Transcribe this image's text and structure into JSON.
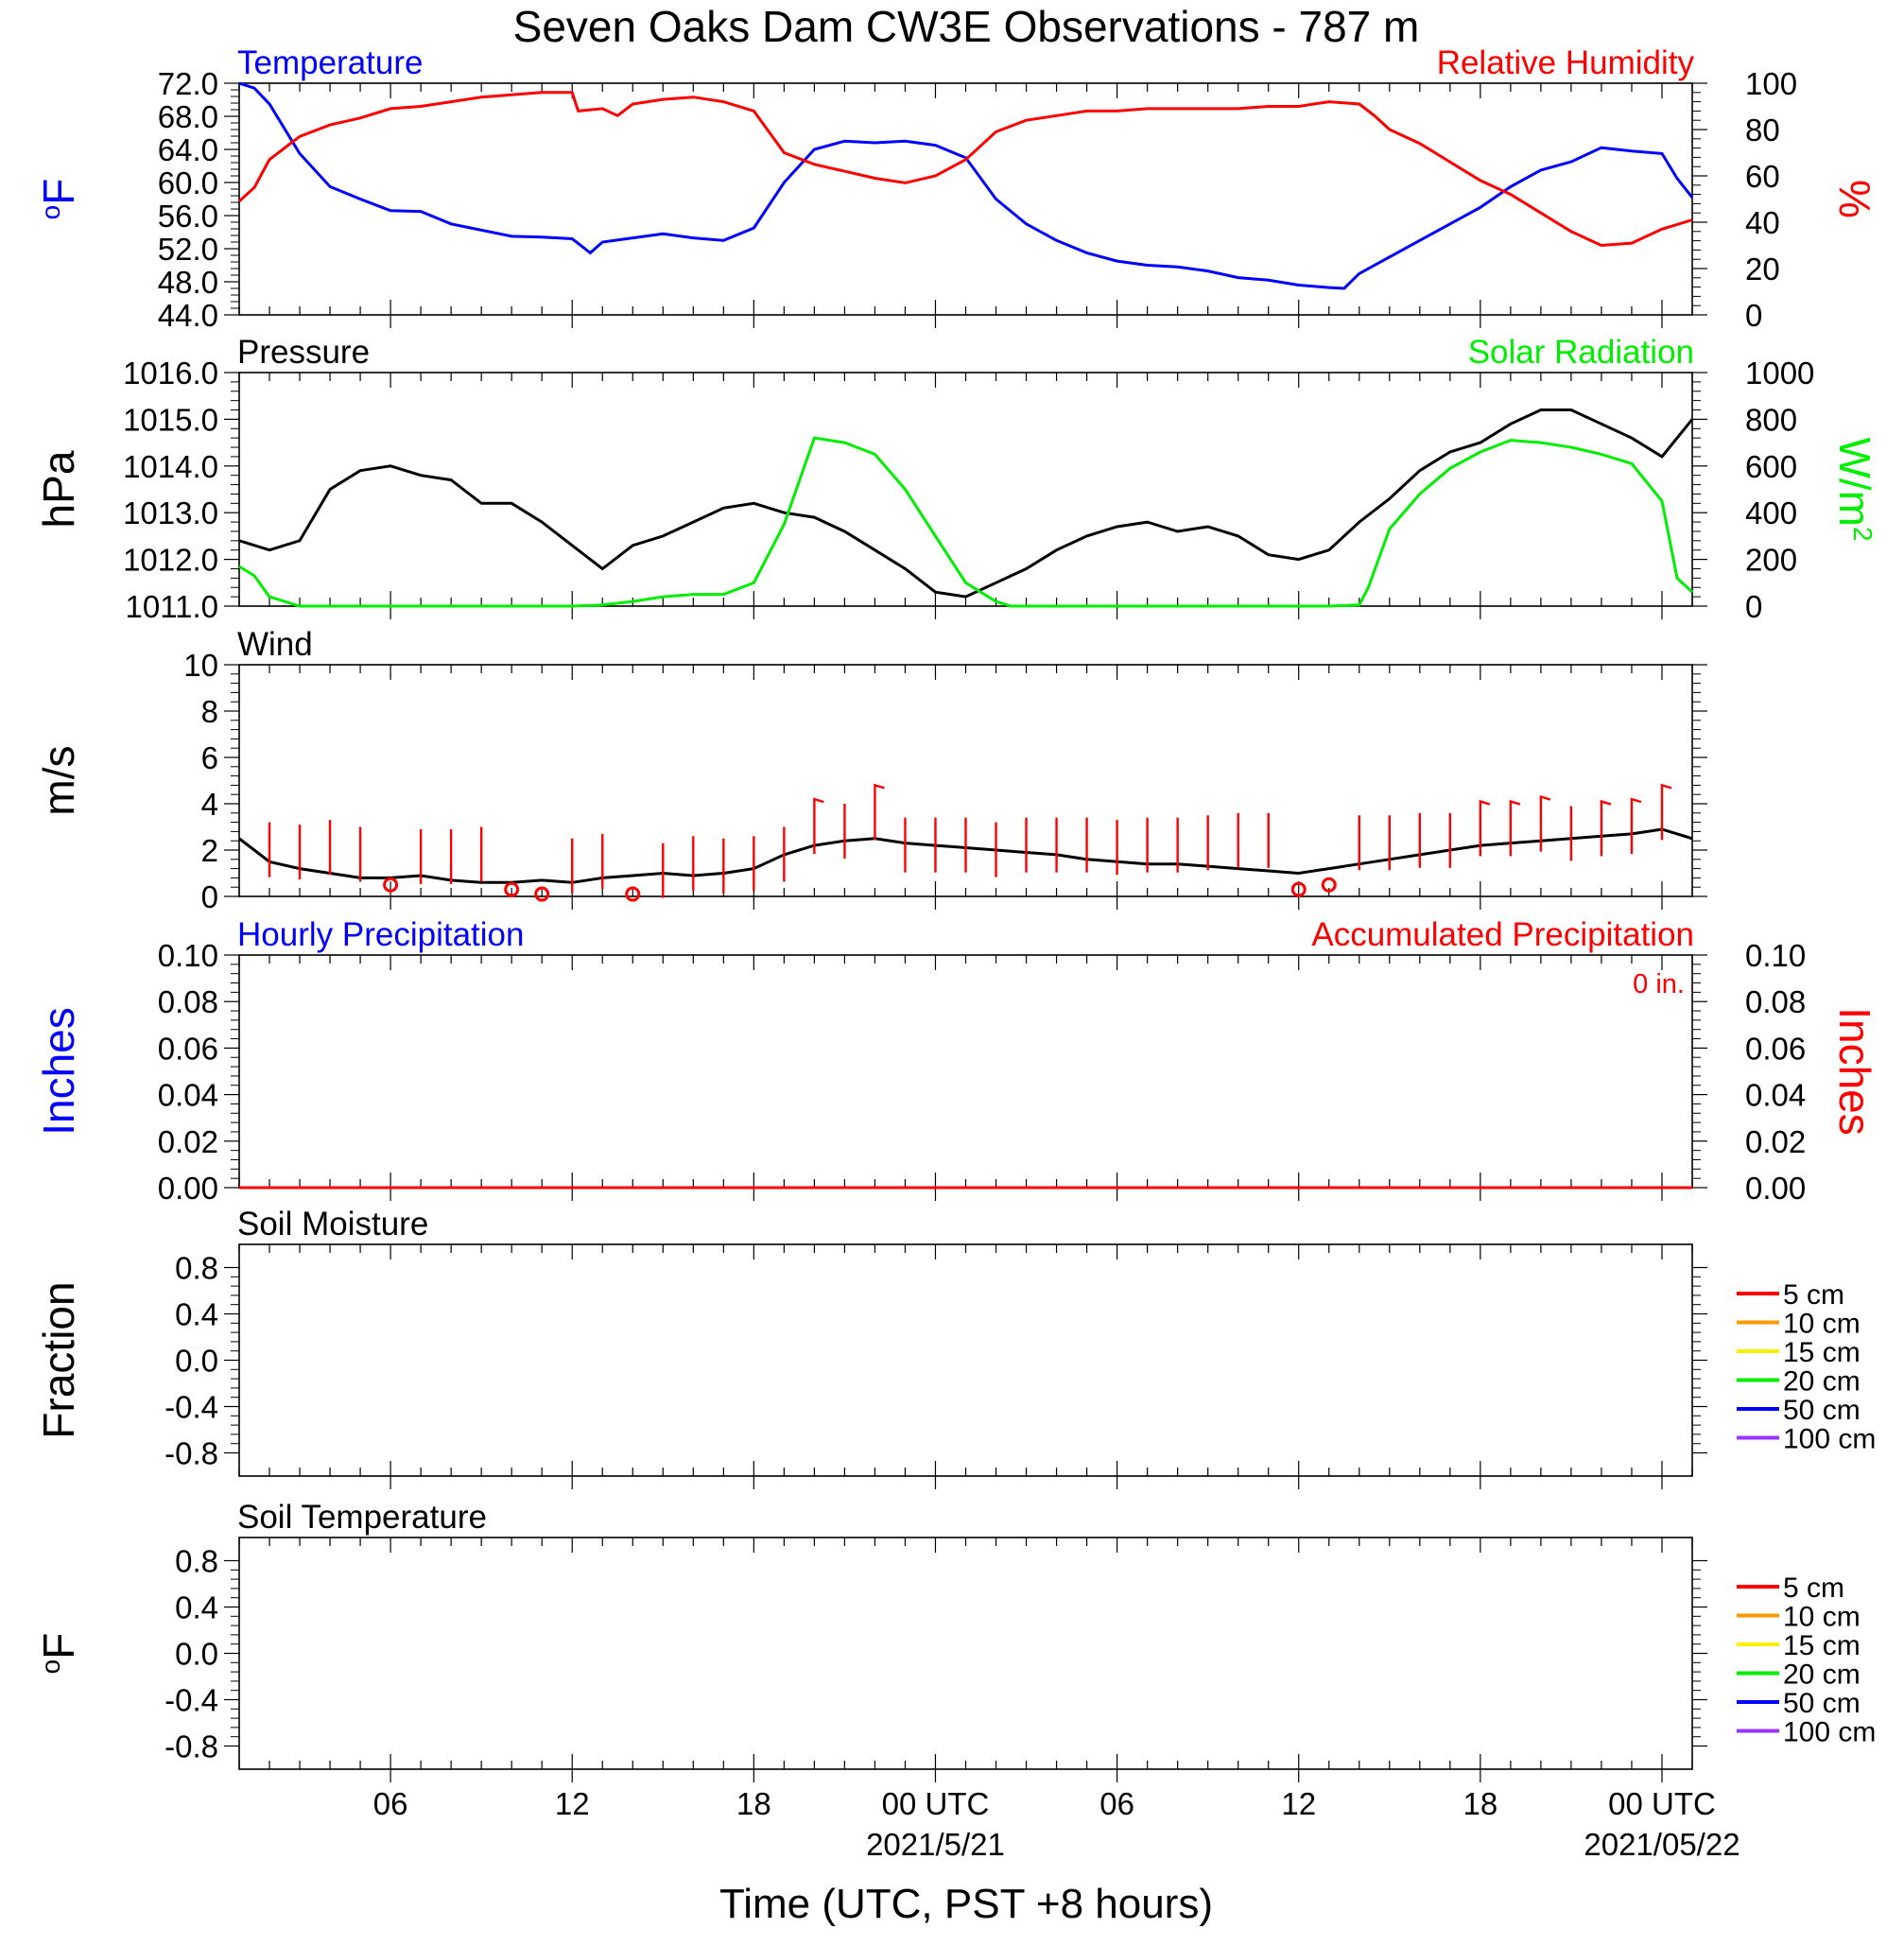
{
  "title": "Seven Oaks Dam CW3E Observations - 787 m",
  "xlabel": "Time (UTC, PST +8 hours)",
  "x_ticks": [
    {
      "hour": 6,
      "label": "06",
      "date": ""
    },
    {
      "hour": 12,
      "label": "12",
      "date": ""
    },
    {
      "hour": 18,
      "label": "18",
      "date": ""
    },
    {
      "hour": 24,
      "label": "00 UTC",
      "date": "2021/5/21"
    },
    {
      "hour": 30,
      "label": "06",
      "date": ""
    },
    {
      "hour": 36,
      "label": "12",
      "date": ""
    },
    {
      "hour": 42,
      "label": "18",
      "date": ""
    },
    {
      "hour": 48,
      "label": "00 UTC",
      "date": "2021/05/22"
    }
  ],
  "colors": {
    "temperature": "#0000ff",
    "humidity": "#ff0000",
    "pressure": "#000000",
    "solar": "#00ee00",
    "wind": "#000000",
    "barb": "#ff0000",
    "hourly_precip": "#0000ff",
    "accum_precip": "#ff0000"
  },
  "chart_data": [
    {
      "type": "line",
      "panel": "temperature-humidity",
      "title_left": "Temperature",
      "title_right": "Relative Humidity",
      "ylabel_left": "oF",
      "ylabel_right": "%",
      "xlim_hours": [
        1,
        49
      ],
      "ylim_left": [
        44,
        72
      ],
      "ylim_right": [
        0,
        100
      ],
      "yticks_left": [
        "72.0",
        "68.0",
        "64.0",
        "60.0",
        "56.0",
        "52.0",
        "48.0",
        "44.0"
      ],
      "yticks_right": [
        "100",
        "80",
        "60",
        "40",
        "20",
        "0"
      ],
      "series": [
        {
          "name": "Temperature",
          "axis": "left",
          "x": [
            1,
            1.5,
            2,
            3,
            4,
            5,
            6,
            7,
            8,
            10,
            11,
            12,
            12.6,
            13,
            14,
            15,
            16,
            17,
            18,
            19,
            20,
            21,
            22,
            23,
            24,
            25,
            26,
            27,
            28,
            29,
            30,
            31,
            32,
            33,
            34,
            35,
            36,
            37,
            37.5,
            38,
            39,
            40,
            41,
            42,
            43,
            44,
            45,
            46,
            47,
            48,
            48.5,
            49
          ],
          "y": [
            72,
            71.4,
            69.5,
            63.5,
            59.5,
            58,
            56.6,
            56.5,
            55,
            53.5,
            53.4,
            53.2,
            51.5,
            52.8,
            53.3,
            53.8,
            53.3,
            53,
            54.5,
            60,
            64,
            65,
            64.8,
            65,
            64.5,
            63,
            58,
            55,
            53,
            51.5,
            50.5,
            50,
            49.8,
            49.3,
            48.5,
            48.2,
            47.6,
            47.3,
            47.2,
            49,
            51,
            53,
            55,
            57,
            59.5,
            61.5,
            62.5,
            64.2,
            63.8,
            63.5,
            60.5,
            58.2
          ]
        },
        {
          "name": "Relative Humidity",
          "axis": "right",
          "x": [
            1,
            1.5,
            2,
            3,
            4,
            5,
            6,
            7,
            8,
            9,
            10,
            11,
            12,
            12.2,
            13,
            13.5,
            14,
            15,
            16,
            17,
            18,
            19,
            20,
            21,
            22,
            23,
            24,
            25,
            26,
            27,
            28,
            29,
            30,
            31,
            32,
            33,
            34,
            35,
            36,
            37,
            38,
            38.5,
            39,
            40,
            41,
            42,
            43,
            44,
            45,
            46,
            47,
            48,
            49
          ],
          "y": [
            49,
            55,
            67,
            77,
            82,
            85,
            89,
            90,
            92,
            94,
            95,
            96,
            96,
            88,
            89,
            86,
            91,
            93,
            94,
            92,
            88,
            70,
            65,
            62,
            59,
            57,
            60,
            67,
            79,
            84,
            86,
            88,
            88,
            89,
            89,
            89,
            89,
            90,
            90,
            92,
            91,
            86,
            80,
            74,
            66,
            58,
            52,
            44,
            36,
            30,
            31,
            37,
            41
          ]
        }
      ]
    },
    {
      "type": "line",
      "panel": "pressure-solar",
      "title_left": "Pressure",
      "title_right": "Solar Radiation",
      "ylabel_left": "hPa",
      "ylabel_right": "W/m2",
      "xlim_hours": [
        1,
        49
      ],
      "ylim_left": [
        1011,
        1016
      ],
      "ylim_right": [
        0,
        1000
      ],
      "yticks_left": [
        "1016.0",
        "1015.0",
        "1014.0",
        "1013.0",
        "1012.0",
        "1011.0"
      ],
      "yticks_right": [
        "1000",
        "800",
        "600",
        "400",
        "200",
        "0"
      ],
      "series": [
        {
          "name": "Pressure",
          "axis": "left",
          "x": [
            1,
            2,
            3,
            4,
            5,
            6,
            7,
            8,
            9,
            10,
            11,
            12,
            13,
            14,
            15,
            16,
            17,
            18,
            19,
            20,
            21,
            22,
            23,
            24,
            25,
            26,
            27,
            28,
            29,
            30,
            31,
            32,
            33,
            34,
            35,
            36,
            37,
            38,
            39,
            40,
            41,
            42,
            43,
            44,
            45,
            46,
            47,
            48,
            49
          ],
          "y": [
            1012.4,
            1012.2,
            1012.4,
            1013.5,
            1013.9,
            1014.0,
            1013.8,
            1013.7,
            1013.2,
            1013.2,
            1012.8,
            1012.3,
            1011.8,
            1012.3,
            1012.5,
            1012.8,
            1013.1,
            1013.2,
            1013.0,
            1012.9,
            1012.6,
            1012.2,
            1011.8,
            1011.3,
            1011.2,
            1011.5,
            1011.8,
            1012.2,
            1012.5,
            1012.7,
            1012.8,
            1012.6,
            1012.7,
            1012.5,
            1012.1,
            1012.0,
            1012.2,
            1012.8,
            1013.3,
            1013.9,
            1014.3,
            1014.5,
            1014.9,
            1015.2,
            1015.2,
            1014.9,
            1014.6,
            1014.2,
            1015.0
          ]
        },
        {
          "name": "Solar Radiation",
          "axis": "right",
          "x": [
            1,
            1.5,
            2,
            3,
            4,
            10,
            12,
            13,
            14,
            15,
            16,
            17,
            18,
            19,
            20,
            21,
            22,
            23,
            24,
            25,
            26,
            26.5,
            27,
            35,
            37,
            38,
            38.3,
            39,
            40,
            41,
            42,
            43,
            44,
            45,
            46,
            47,
            48,
            48.5,
            49
          ],
          "y": [
            170,
            130,
            40,
            0,
            0,
            0,
            0,
            5,
            20,
            40,
            50,
            50,
            100,
            350,
            720,
            700,
            650,
            500,
            300,
            100,
            20,
            0,
            0,
            0,
            0,
            5,
            80,
            330,
            480,
            590,
            660,
            710,
            700,
            680,
            650,
            610,
            450,
            120,
            60
          ]
        }
      ]
    },
    {
      "type": "line",
      "panel": "wind",
      "title_left": "Wind",
      "ylabel_left": "m/s",
      "xlim_hours": [
        1,
        49
      ],
      "ylim_left": [
        0,
        10
      ],
      "yticks_left": [
        "10",
        "8",
        "6",
        "4",
        "2",
        "0"
      ],
      "series": [
        {
          "name": "Wind",
          "axis": "left",
          "x": [
            1,
            1.5,
            2,
            3,
            4,
            5,
            6,
            7,
            8,
            9,
            10,
            11,
            12,
            13,
            14,
            15,
            16,
            17,
            18,
            19,
            20,
            21,
            22,
            23,
            24,
            25,
            26,
            27,
            28,
            29,
            30,
            31,
            32,
            33,
            34,
            35,
            36,
            37,
            38,
            39,
            40,
            41,
            42,
            43,
            44,
            45,
            46,
            47,
            48,
            49
          ],
          "y": [
            2.5,
            2.0,
            1.5,
            1.2,
            1.0,
            0.8,
            0.8,
            0.9,
            0.7,
            0.6,
            0.6,
            0.7,
            0.6,
            0.8,
            0.9,
            1.0,
            0.9,
            1.0,
            1.2,
            1.8,
            2.2,
            2.4,
            2.5,
            2.3,
            2.2,
            2.1,
            2.0,
            1.9,
            1.8,
            1.6,
            1.5,
            1.4,
            1.4,
            1.3,
            1.2,
            1.1,
            1.0,
            1.2,
            1.4,
            1.6,
            1.8,
            2.0,
            2.2,
            2.3,
            2.4,
            2.5,
            2.6,
            2.7,
            2.9,
            2.5
          ]
        },
        {
          "name": "Wind barbs",
          "axis": "left",
          "x": [
            2,
            3,
            4,
            5,
            6,
            7,
            8,
            9,
            10,
            11,
            12,
            13,
            14,
            15,
            16,
            17,
            18,
            19,
            20,
            21,
            22,
            23,
            24,
            25,
            26,
            27,
            28,
            29,
            30,
            31,
            32,
            33,
            34,
            35,
            36,
            37,
            38,
            39,
            40,
            41,
            42,
            43,
            44,
            45,
            46,
            47,
            48
          ],
          "y": [
            3.2,
            3.1,
            3.3,
            3.0,
            0.5,
            2.9,
            2.9,
            3.0,
            0.3,
            0.1,
            2.5,
            2.7,
            0.1,
            2.3,
            2.6,
            2.5,
            2.6,
            3.0,
            4.2,
            4.0,
            4.8,
            3.4,
            3.4,
            3.4,
            3.2,
            3.4,
            3.4,
            3.4,
            3.3,
            3.4,
            3.4,
            3.5,
            3.6,
            3.6,
            0.3,
            0.5,
            3.5,
            3.5,
            3.6,
            3.6,
            4.1,
            4.1,
            4.3,
            3.9,
            4.1,
            4.2,
            4.8
          ]
        }
      ]
    },
    {
      "type": "line",
      "panel": "precipitation",
      "title_left": "Hourly Precipitation",
      "title_right": "Accumulated Precipitation",
      "annotation": "0 in.",
      "ylabel_left": "Inches",
      "ylabel_right": "Inches",
      "xlim_hours": [
        1,
        49
      ],
      "ylim_left": [
        0,
        0.1
      ],
      "ylim_right": [
        0,
        0.1
      ],
      "yticks_left": [
        "0.10",
        "0.08",
        "0.06",
        "0.04",
        "0.02",
        "0.00"
      ],
      "yticks_right": [
        "0.10",
        "0.08",
        "0.06",
        "0.04",
        "0.02",
        "0.00"
      ],
      "series": [
        {
          "name": "Hourly Precipitation",
          "axis": "left",
          "x": [
            1,
            49
          ],
          "y": [
            0,
            0
          ]
        },
        {
          "name": "Accumulated Precipitation",
          "axis": "right",
          "x": [
            1,
            49
          ],
          "y": [
            0,
            0
          ]
        }
      ]
    },
    {
      "type": "line",
      "panel": "soil-moisture",
      "title_left": "Soil Moisture",
      "ylabel_left": "Fraction",
      "xlim_hours": [
        1,
        49
      ],
      "ylim_left": [
        -1,
        1
      ],
      "yticks_left": [
        "0.8",
        "0.4",
        "0.0",
        "-0.4",
        "-0.8"
      ],
      "legend": [
        {
          "label": "5 cm",
          "color": "#ff0000"
        },
        {
          "label": "10 cm",
          "color": "#ff9900"
        },
        {
          "label": "15 cm",
          "color": "#ffee00"
        },
        {
          "label": "20 cm",
          "color": "#00ee00"
        },
        {
          "label": "50 cm",
          "color": "#0000ff"
        },
        {
          "label": "100 cm",
          "color": "#9933ff"
        }
      ],
      "series": []
    },
    {
      "type": "line",
      "panel": "soil-temperature",
      "title_left": "Soil Temperature",
      "ylabel_left": "oF",
      "xlim_hours": [
        1,
        49
      ],
      "ylim_left": [
        -1,
        1
      ],
      "yticks_left": [
        "0.8",
        "0.4",
        "0.0",
        "-0.4",
        "-0.8"
      ],
      "legend": [
        {
          "label": "5 cm",
          "color": "#ff0000"
        },
        {
          "label": "10 cm",
          "color": "#ff9900"
        },
        {
          "label": "15 cm",
          "color": "#ffee00"
        },
        {
          "label": "20 cm",
          "color": "#00ee00"
        },
        {
          "label": "50 cm",
          "color": "#0000ff"
        },
        {
          "label": "100 cm",
          "color": "#9933ff"
        }
      ],
      "series": []
    }
  ]
}
